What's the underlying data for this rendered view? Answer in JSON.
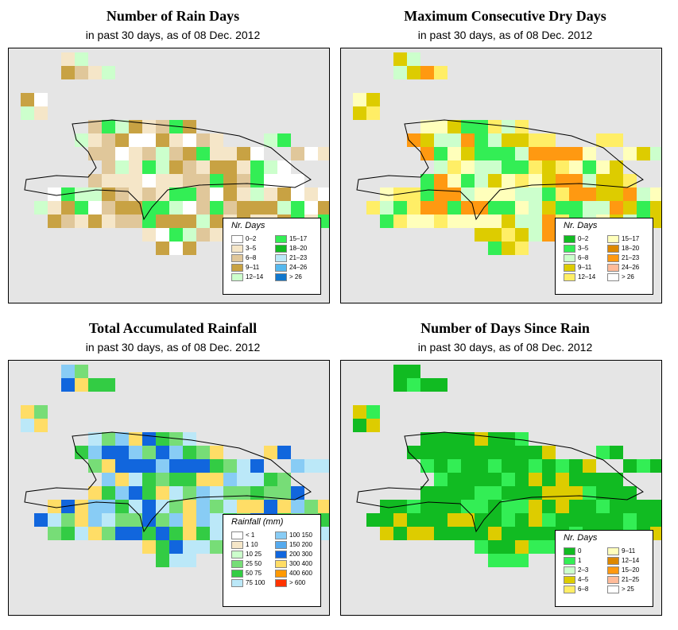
{
  "panels": [
    {
      "id": "rain-days",
      "title": "Number of Rain Days",
      "subtitle": "in past 30 days, as of  08 Dec. 2012",
      "legend": {
        "title": "Nr. Days",
        "items": [
          {
            "label": "0–2",
            "color": "#ffffff"
          },
          {
            "label": "3–5",
            "color": "#f5e6c8"
          },
          {
            "label": "6–8",
            "color": "#e0c79a"
          },
          {
            "label": "9–11",
            "color": "#c8a243"
          },
          {
            "label": "12–14",
            "color": "#ccffcc"
          },
          {
            "label": "15–17",
            "color": "#33ee55"
          },
          {
            "label": "18–20",
            "color": "#11bb22"
          },
          {
            "label": "21–23",
            "color": "#bbe8f8"
          },
          {
            "label": "24–26",
            "color": "#55b8ee"
          },
          {
            "label": "> 26",
            "color": "#1177cc"
          }
        ]
      }
    },
    {
      "id": "max-dry-days",
      "title": "Maximum Consecutive Dry Days",
      "subtitle": "in past 30 days, as of  08 Dec. 2012",
      "legend": {
        "title": "Nr. Days",
        "items": [
          {
            "label": "0–2",
            "color": "#11bb22"
          },
          {
            "label": "3–5",
            "color": "#33ee55"
          },
          {
            "label": "6–8",
            "color": "#ccffcc"
          },
          {
            "label": "9–11",
            "color": "#ddcc00"
          },
          {
            "label": "12–14",
            "color": "#ffee66"
          },
          {
            "label": "15–17",
            "color": "#ffffbb"
          },
          {
            "label": "18–20",
            "color": "#dd8800"
          },
          {
            "label": "21–23",
            "color": "#ff9911"
          },
          {
            "label": "24–26",
            "color": "#ffbb99"
          },
          {
            "label": "> 26",
            "color": "#ffffff"
          }
        ]
      }
    },
    {
      "id": "total-rainfall",
      "title": "Total Accumulated Rainfall",
      "subtitle": "in past 30 days, as of  08 Dec. 2012",
      "legend": {
        "title": "Rainfall (mm)",
        "items": [
          {
            "label": "< 1",
            "color": "#ffffff"
          },
          {
            "label": "1  10",
            "color": "#f5e6c8"
          },
          {
            "label": "10  25",
            "color": "#ccffcc"
          },
          {
            "label": "25  50",
            "color": "#77dd77"
          },
          {
            "label": "50  75",
            "color": "#33cc44"
          },
          {
            "label": "75  100",
            "color": "#bbe8f8"
          },
          {
            "label": "100  150",
            "color": "#88ccf5"
          },
          {
            "label": "150  200",
            "color": "#55aaee"
          },
          {
            "label": "200  300",
            "color": "#1166dd"
          },
          {
            "label": "300  400",
            "color": "#ffdd66"
          },
          {
            "label": "400  600",
            "color": "#ff9900"
          },
          {
            "label": "> 600",
            "color": "#ff3300"
          }
        ]
      }
    },
    {
      "id": "days-since-rain",
      "title": "Number of Days Since Rain",
      "subtitle": "in past 30 days, as of  08 Dec. 2012",
      "legend": {
        "title": "Nr. Days",
        "items": [
          {
            "label": "0",
            "color": "#11bb22"
          },
          {
            "label": "1",
            "color": "#33ee55"
          },
          {
            "label": "2–3",
            "color": "#ccffcc"
          },
          {
            "label": "4–5",
            "color": "#ddcc00"
          },
          {
            "label": "6–8",
            "color": "#ffee66"
          },
          {
            "label": "9–11",
            "color": "#ffffbb"
          },
          {
            "label": "12–14",
            "color": "#dd8800"
          },
          {
            "label": "15–20",
            "color": "#ff9911"
          },
          {
            "label": "21–25",
            "color": "#ffbb99"
          },
          {
            "label": "> 25",
            "color": "#ffffff"
          }
        ]
      }
    }
  ],
  "map_style": {
    "background_color": "#e5e5e5",
    "border_color": "#000000"
  }
}
